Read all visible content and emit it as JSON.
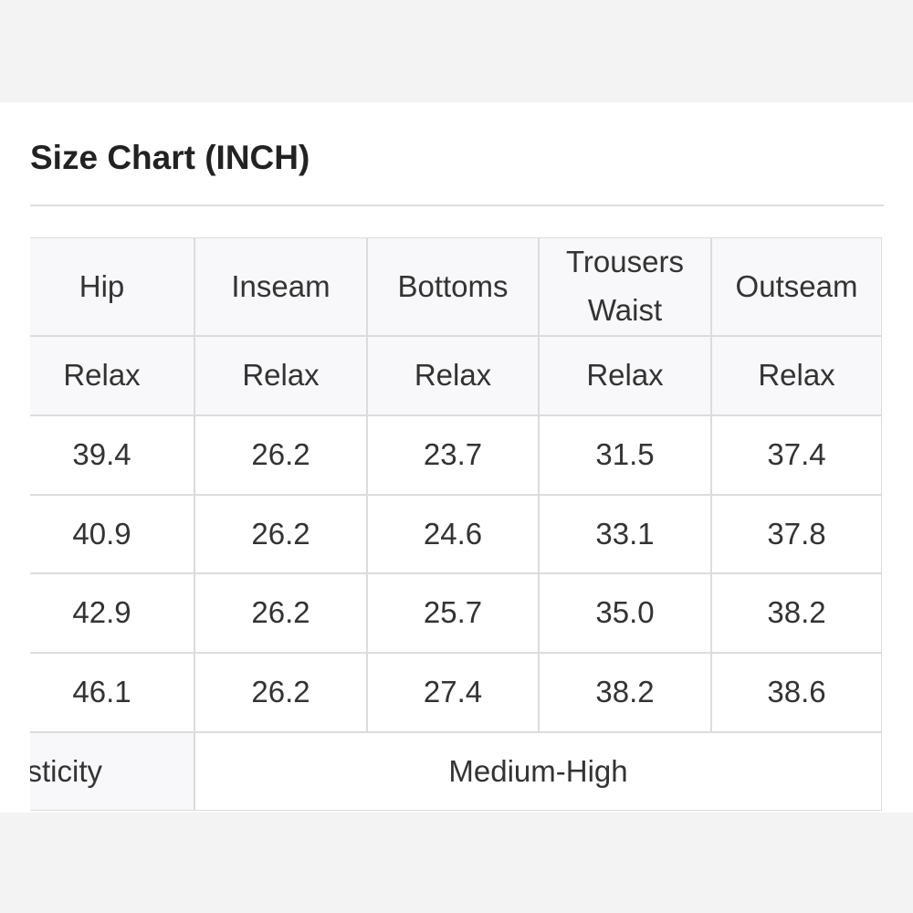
{
  "title": "Size Chart (INCH)",
  "table": {
    "header": [
      "Hip",
      "Inseam",
      "Bottoms",
      "Trousers Waist",
      "Outseam"
    ],
    "subheader": [
      "Relax",
      "Relax",
      "Relax",
      "Relax",
      "Relax"
    ],
    "rows": [
      [
        "39.4",
        "26.2",
        "23.7",
        "31.5",
        "37.4"
      ],
      [
        "40.9",
        "26.2",
        "24.6",
        "33.1",
        "37.8"
      ],
      [
        "42.9",
        "26.2",
        "25.7",
        "35.0",
        "38.2"
      ],
      [
        "46.1",
        "26.2",
        "27.4",
        "38.2",
        "38.6"
      ]
    ],
    "footer": {
      "label": "sticity",
      "value": "Medium-High"
    }
  }
}
